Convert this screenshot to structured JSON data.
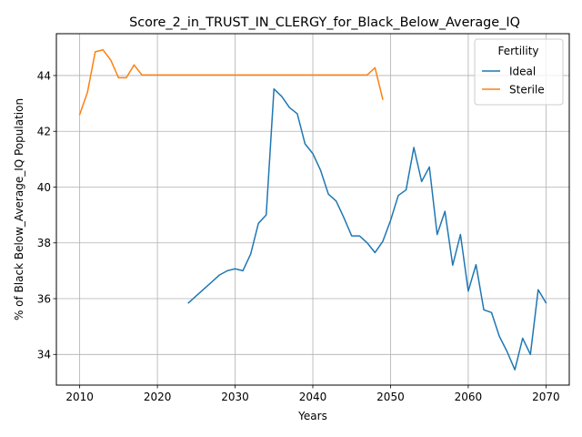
{
  "chart_data": {
    "type": "line",
    "title": "Score_2_in_TRUST_IN_CLERGY_for_Black_Below_Average_IQ",
    "xlabel": "Years",
    "ylabel": "% of Black Below_Average_IQ Population",
    "xlim": [
      2007,
      2073
    ],
    "ylim": [
      32.9,
      45.5
    ],
    "xticks": [
      2010,
      2020,
      2030,
      2040,
      2050,
      2060,
      2070
    ],
    "yticks": [
      34,
      36,
      38,
      40,
      42,
      44
    ],
    "grid": true,
    "legend": {
      "title": "Fertility",
      "placement": "top-right"
    },
    "series": [
      {
        "name": "Ideal",
        "color": "#1f77b4",
        "x": [
          2024,
          2025,
          2026,
          2027,
          2028,
          2029,
          2030,
          2031,
          2032,
          2033,
          2034,
          2035,
          2036,
          2037,
          2038,
          2039,
          2040,
          2041,
          2042,
          2043,
          2044,
          2045,
          2046,
          2047,
          2048,
          2049,
          2050,
          2051,
          2052,
          2053,
          2054,
          2055,
          2056,
          2057,
          2058,
          2059,
          2060,
          2061,
          2062,
          2063,
          2064,
          2065,
          2066,
          2067,
          2068,
          2069,
          2070
        ],
        "y": [
          35.85,
          36.1,
          36.35,
          36.6,
          36.85,
          37.0,
          37.07,
          37.0,
          37.6,
          38.7,
          39.0,
          43.52,
          43.25,
          42.85,
          42.63,
          41.55,
          41.2,
          40.6,
          39.75,
          39.5,
          38.9,
          38.25,
          38.25,
          38.0,
          37.65,
          38.05,
          38.8,
          39.7,
          39.9,
          41.42,
          40.2,
          40.72,
          38.3,
          39.13,
          37.2,
          38.3,
          36.27,
          37.22,
          35.6,
          35.5,
          34.65,
          34.1,
          33.45,
          34.58,
          34.0,
          36.32,
          35.85
        ]
      },
      {
        "name": "Sterile",
        "color": "#ff7f0e",
        "x": [
          2010,
          2011,
          2012,
          2013,
          2014,
          2015,
          2016,
          2017,
          2018,
          2019,
          2020,
          2021,
          2022,
          2023,
          2024,
          2025,
          2026,
          2027,
          2028,
          2029,
          2030,
          2031,
          2032,
          2033,
          2034,
          2035,
          2036,
          2037,
          2038,
          2039,
          2040,
          2041,
          2042,
          2043,
          2044,
          2045,
          2046,
          2047,
          2048,
          2049
        ],
        "y": [
          42.6,
          43.4,
          44.85,
          44.92,
          44.55,
          43.92,
          43.92,
          44.38,
          44.02,
          44.02,
          44.02,
          44.02,
          44.02,
          44.02,
          44.02,
          44.02,
          44.02,
          44.02,
          44.02,
          44.02,
          44.02,
          44.02,
          44.02,
          44.02,
          44.02,
          44.02,
          44.02,
          44.02,
          44.02,
          44.02,
          44.02,
          44.02,
          44.02,
          44.02,
          44.02,
          44.02,
          44.02,
          44.02,
          44.28,
          43.15
        ]
      }
    ]
  }
}
